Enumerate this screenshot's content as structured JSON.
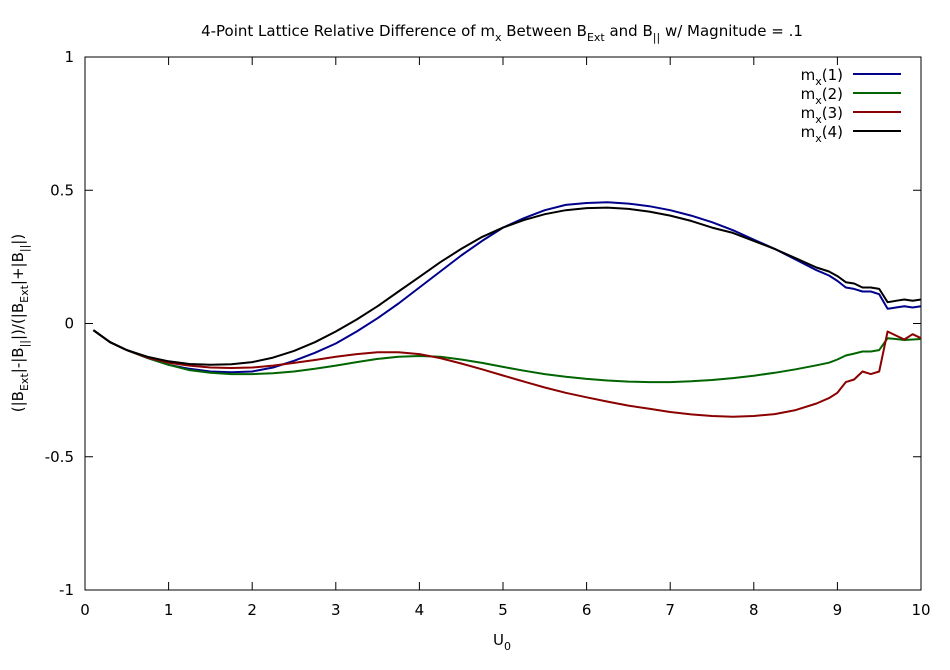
{
  "chart_data": {
    "type": "line",
    "title": {
      "prefix": "4-Point Lattice Relative Difference of m",
      "sub1": "x",
      "mid1": " Between B",
      "sub2": "Ext",
      "mid2": " and B",
      "sub3": "||",
      "suffix": " w/ Magnitude = .1"
    },
    "xlabel": {
      "main": "U",
      "sub": "0"
    },
    "ylabel": {
      "p1": "(|B",
      "s1": "Ext",
      "p2": "|-|B",
      "s2": "||",
      "p3": "|)/(|B",
      "s3": "Ext",
      "p4": "|+|B",
      "s4": "||",
      "p5": "|)"
    },
    "xlim": [
      0,
      10
    ],
    "ylim": [
      -1,
      1
    ],
    "xticks": [
      {
        "value": 0,
        "label": "0"
      },
      {
        "value": 1,
        "label": "1"
      },
      {
        "value": 2,
        "label": "2"
      },
      {
        "value": 3,
        "label": "3"
      },
      {
        "value": 4,
        "label": "4"
      },
      {
        "value": 5,
        "label": "5"
      },
      {
        "value": 6,
        "label": "6"
      },
      {
        "value": 7,
        "label": "7"
      },
      {
        "value": 8,
        "label": "8"
      },
      {
        "value": 9,
        "label": "9"
      },
      {
        "value": 10,
        "label": "10"
      }
    ],
    "yticks": [
      {
        "value": -1,
        "label": "-1"
      },
      {
        "value": -0.5,
        "label": "-0.5"
      },
      {
        "value": 0,
        "label": "0"
      },
      {
        "value": 0.5,
        "label": "0.5"
      },
      {
        "value": 1,
        "label": "1"
      }
    ],
    "grid": false,
    "legend_position": "top-right",
    "series": [
      {
        "name": "m",
        "name_sub": "x",
        "name_suffix": "(1)",
        "color": "#00008b",
        "x": [
          0.1,
          0.3,
          0.5,
          0.75,
          1.0,
          1.25,
          1.5,
          1.75,
          2.0,
          2.25,
          2.5,
          2.75,
          3.0,
          3.25,
          3.5,
          3.75,
          4.0,
          4.25,
          4.5,
          4.75,
          5.0,
          5.25,
          5.5,
          5.75,
          6.0,
          6.25,
          6.5,
          6.75,
          7.0,
          7.25,
          7.5,
          7.75,
          8.0,
          8.25,
          8.5,
          8.75,
          8.9,
          9.0,
          9.1,
          9.2,
          9.3,
          9.4,
          9.5,
          9.6,
          9.7,
          9.8,
          9.9,
          10.0
        ],
        "y": [
          -0.025,
          -0.07,
          -0.1,
          -0.13,
          -0.155,
          -0.17,
          -0.18,
          -0.183,
          -0.18,
          -0.165,
          -0.14,
          -0.11,
          -0.075,
          -0.03,
          0.02,
          0.075,
          0.135,
          0.195,
          0.255,
          0.31,
          0.36,
          0.395,
          0.425,
          0.445,
          0.452,
          0.455,
          0.45,
          0.44,
          0.425,
          0.405,
          0.38,
          0.35,
          0.315,
          0.28,
          0.24,
          0.2,
          0.18,
          0.16,
          0.135,
          0.13,
          0.12,
          0.12,
          0.11,
          0.055,
          0.06,
          0.065,
          0.06,
          0.065
        ]
      },
      {
        "name": "m",
        "name_sub": "x",
        "name_suffix": "(2)",
        "color": "#006400",
        "x": [
          0.1,
          0.3,
          0.5,
          0.75,
          1.0,
          1.25,
          1.5,
          1.75,
          2.0,
          2.25,
          2.5,
          2.75,
          3.0,
          3.25,
          3.5,
          3.75,
          4.0,
          4.25,
          4.5,
          4.75,
          5.0,
          5.25,
          5.5,
          5.75,
          6.0,
          6.25,
          6.5,
          6.75,
          7.0,
          7.25,
          7.5,
          7.75,
          8.0,
          8.25,
          8.5,
          8.75,
          8.9,
          9.0,
          9.1,
          9.2,
          9.3,
          9.4,
          9.5,
          9.6,
          9.7,
          9.8,
          9.9,
          10.0
        ],
        "y": [
          -0.025,
          -0.07,
          -0.1,
          -0.13,
          -0.155,
          -0.175,
          -0.185,
          -0.19,
          -0.19,
          -0.187,
          -0.18,
          -0.17,
          -0.158,
          -0.145,
          -0.133,
          -0.125,
          -0.122,
          -0.125,
          -0.135,
          -0.148,
          -0.163,
          -0.177,
          -0.19,
          -0.2,
          -0.208,
          -0.214,
          -0.218,
          -0.22,
          -0.22,
          -0.217,
          -0.212,
          -0.205,
          -0.196,
          -0.185,
          -0.172,
          -0.157,
          -0.147,
          -0.135,
          -0.12,
          -0.113,
          -0.105,
          -0.105,
          -0.1,
          -0.055,
          -0.058,
          -0.062,
          -0.06,
          -0.058
        ]
      },
      {
        "name": "m",
        "name_sub": "x",
        "name_suffix": "(3)",
        "color": "#8b0000",
        "x": [
          0.1,
          0.3,
          0.5,
          0.75,
          1.0,
          1.25,
          1.5,
          1.75,
          2.0,
          2.25,
          2.5,
          2.75,
          3.0,
          3.25,
          3.5,
          3.75,
          4.0,
          4.25,
          4.5,
          4.75,
          5.0,
          5.25,
          5.5,
          5.75,
          6.0,
          6.25,
          6.5,
          6.75,
          7.0,
          7.25,
          7.5,
          7.75,
          8.0,
          8.25,
          8.5,
          8.75,
          8.9,
          9.0,
          9.1,
          9.2,
          9.3,
          9.4,
          9.5,
          9.6,
          9.7,
          9.8,
          9.9,
          10.0
        ],
        "y": [
          -0.025,
          -0.07,
          -0.1,
          -0.128,
          -0.147,
          -0.158,
          -0.165,
          -0.167,
          -0.165,
          -0.158,
          -0.148,
          -0.137,
          -0.125,
          -0.115,
          -0.108,
          -0.108,
          -0.115,
          -0.13,
          -0.15,
          -0.172,
          -0.195,
          -0.218,
          -0.24,
          -0.26,
          -0.277,
          -0.293,
          -0.308,
          -0.32,
          -0.332,
          -0.341,
          -0.347,
          -0.35,
          -0.347,
          -0.34,
          -0.325,
          -0.3,
          -0.28,
          -0.26,
          -0.22,
          -0.21,
          -0.18,
          -0.19,
          -0.18,
          -0.03,
          -0.045,
          -0.06,
          -0.04,
          -0.055
        ]
      },
      {
        "name": "m",
        "name_sub": "x",
        "name_suffix": "(4)",
        "color": "#000000",
        "x": [
          0.1,
          0.3,
          0.5,
          0.75,
          1.0,
          1.25,
          1.5,
          1.75,
          2.0,
          2.25,
          2.5,
          2.75,
          3.0,
          3.25,
          3.5,
          3.75,
          4.0,
          4.25,
          4.5,
          4.75,
          5.0,
          5.25,
          5.5,
          5.75,
          6.0,
          6.25,
          6.5,
          6.75,
          7.0,
          7.25,
          7.5,
          7.75,
          8.0,
          8.25,
          8.5,
          8.75,
          8.9,
          9.0,
          9.1,
          9.2,
          9.3,
          9.4,
          9.5,
          9.6,
          9.7,
          9.8,
          9.9,
          10.0
        ],
        "y": [
          -0.025,
          -0.07,
          -0.1,
          -0.125,
          -0.142,
          -0.152,
          -0.155,
          -0.153,
          -0.145,
          -0.128,
          -0.103,
          -0.07,
          -0.03,
          0.015,
          0.065,
          0.12,
          0.175,
          0.23,
          0.28,
          0.325,
          0.36,
          0.388,
          0.41,
          0.425,
          0.433,
          0.435,
          0.43,
          0.42,
          0.405,
          0.385,
          0.36,
          0.34,
          0.31,
          0.28,
          0.245,
          0.21,
          0.195,
          0.178,
          0.155,
          0.15,
          0.135,
          0.135,
          0.13,
          0.08,
          0.085,
          0.09,
          0.085,
          0.09
        ]
      }
    ]
  }
}
